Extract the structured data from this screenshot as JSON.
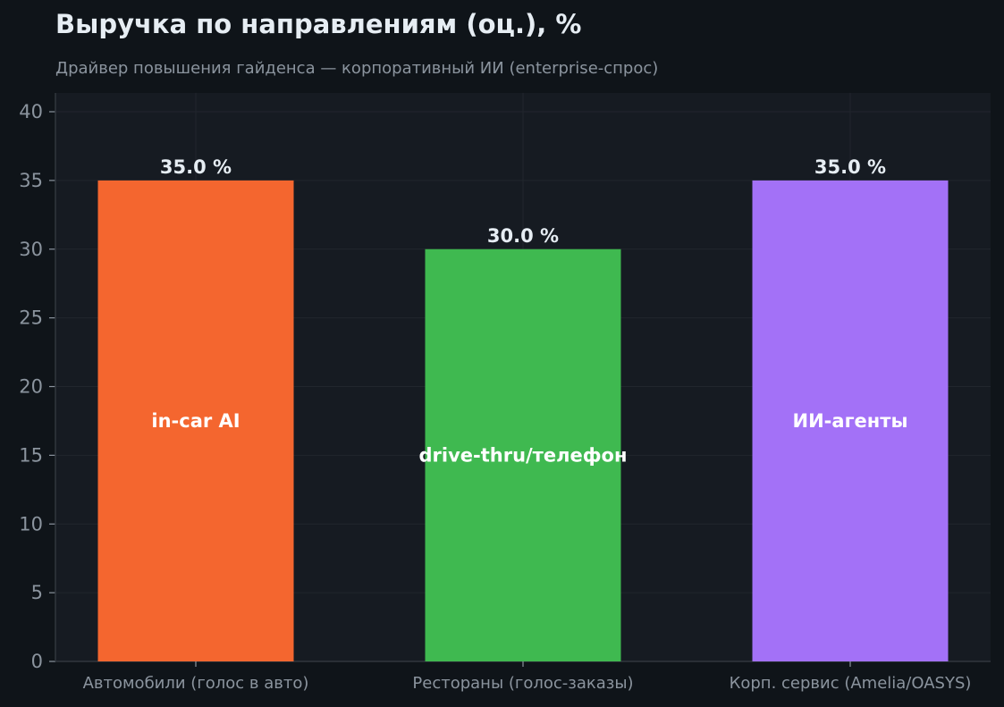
{
  "chart_data": {
    "type": "bar",
    "title": "Выручка по направлениям (оц.), %",
    "subtitle": "Драйвер повышения гайденса — корпоративный ИИ (enterprise-спрос)",
    "xlabel": "",
    "ylabel": "",
    "ylim": [
      0,
      41
    ],
    "yticks": [
      0,
      5,
      10,
      15,
      20,
      25,
      30,
      35,
      40
    ],
    "grid": true,
    "categories": [
      "Автомобили (голос в авто)",
      "Рестораны (голос-заказы)",
      "Корп. сервис (Amelia/OASYS)"
    ],
    "values": [
      35.0,
      30.0,
      35.0
    ],
    "value_labels": [
      "35.0 %",
      "30.0 %",
      "35.0 %"
    ],
    "bar_annotations": [
      "in-car AI",
      "drive-thru/телефон",
      "ИИ-агенты"
    ],
    "colors": [
      "#f4662f",
      "#3fb950",
      "#a371f7"
    ]
  },
  "theme": {
    "background": "#0f1419",
    "plot_background": "#161b22",
    "grid_color": "#21262d",
    "axis_color": "#30363d",
    "text_color": "#e6edf3",
    "muted_text_color": "#8b949e"
  }
}
